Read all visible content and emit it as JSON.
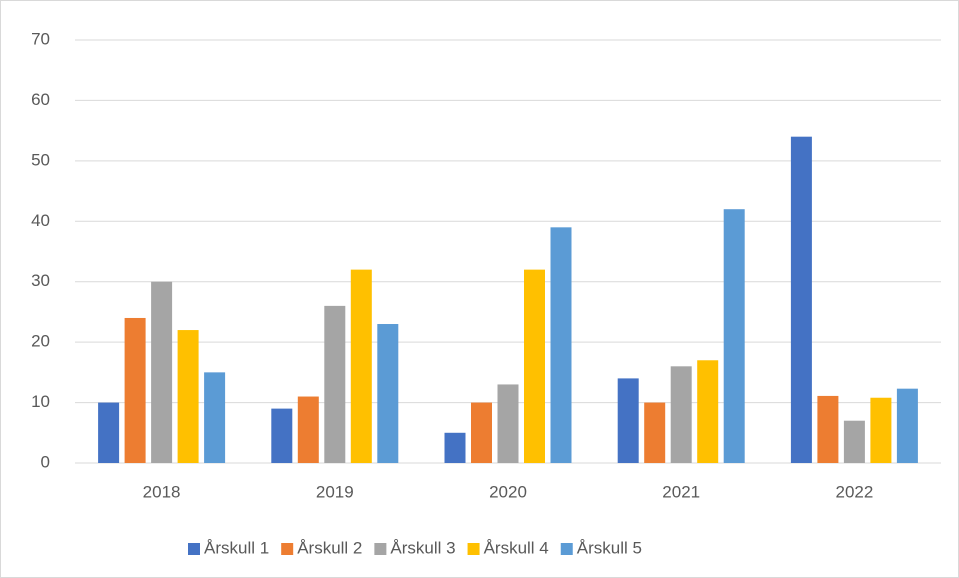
{
  "chart_data": {
    "type": "bar",
    "categories": [
      "2018",
      "2019",
      "2020",
      "2021",
      "2022"
    ],
    "series": [
      {
        "name": "Årskull 1",
        "color": "#4472c4",
        "values": [
          10,
          9,
          5,
          14,
          54
        ]
      },
      {
        "name": "Årskull 2",
        "color": "#ed7d31",
        "values": [
          24,
          11,
          10,
          10,
          11.1
        ]
      },
      {
        "name": "Årskull 3",
        "color": "#a5a5a5",
        "values": [
          30,
          26,
          13,
          16,
          7
        ]
      },
      {
        "name": "Årskull 4",
        "color": "#ffc000",
        "values": [
          22,
          32,
          32,
          17,
          10.8
        ]
      },
      {
        "name": "Årskull 5",
        "color": "#5b9bd5",
        "values": [
          15,
          23,
          39,
          42,
          12.3
        ]
      }
    ],
    "ylim": [
      0,
      70
    ],
    "yticks": [
      0,
      10,
      20,
      30,
      40,
      50,
      60,
      70
    ],
    "grid": true,
    "legend": "bottom"
  }
}
